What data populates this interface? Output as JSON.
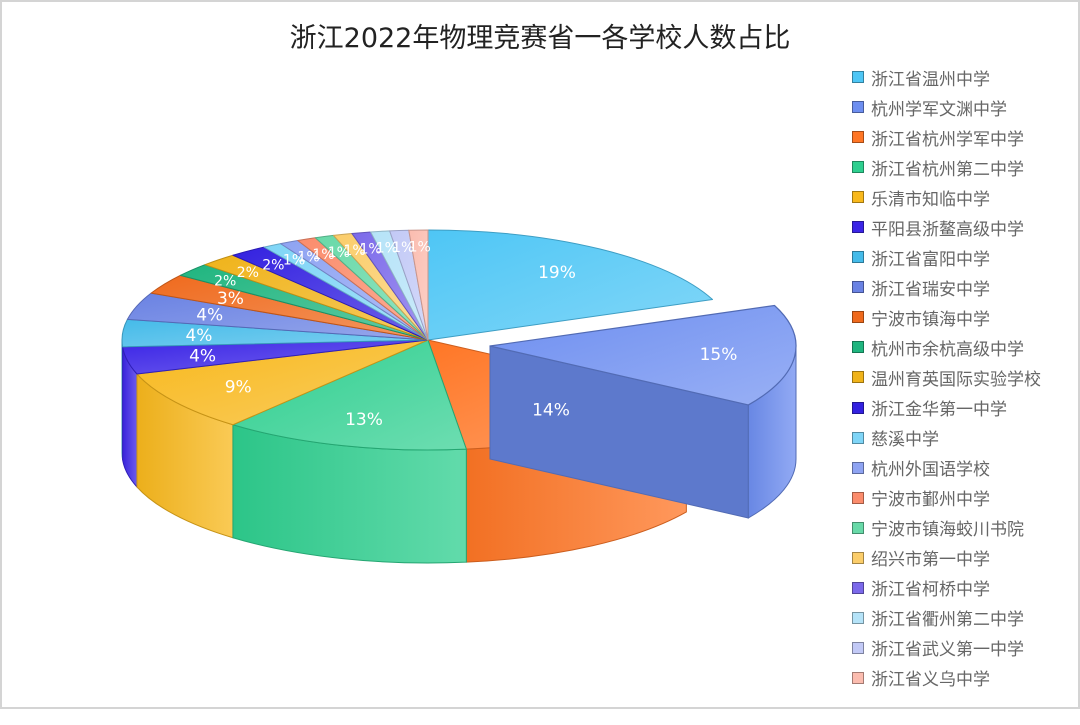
{
  "chart_data": {
    "type": "pie",
    "variant": "3d-exploded",
    "title": "浙江2022年物理竞赛省一各学校人数占比",
    "legend_position": "right",
    "data_label_format": "percent",
    "slices": [
      {
        "name": "浙江省温州中学",
        "value": 19,
        "label": "19%",
        "color": "#4ec6f5"
      },
      {
        "name": "杭州学军文渊中学",
        "value": 15,
        "label": "15%",
        "color": "#6d8ef0",
        "exploded": true
      },
      {
        "name": "浙江省杭州学军中学",
        "value": 14,
        "label": "14%",
        "color": "#ff7625"
      },
      {
        "name": "浙江省杭州第二中学",
        "value": 13,
        "label": "13%",
        "color": "#2ecf8f"
      },
      {
        "name": "乐清市知临中学",
        "value": 9,
        "label": "9%",
        "color": "#f8b81c"
      },
      {
        "name": "平阳县浙鳌高级中学",
        "value": 4,
        "label": "4%",
        "color": "#3b25e6"
      },
      {
        "name": "浙江省富阳中学",
        "value": 4,
        "label": "4%",
        "color": "#45bbe9"
      },
      {
        "name": "浙江省瑞安中学",
        "value": 4,
        "label": "4%",
        "color": "#6a82e3"
      },
      {
        "name": "宁波市镇海中学",
        "value": 3,
        "label": "3%",
        "color": "#ef6a1d"
      },
      {
        "name": "杭州市余杭高级中学",
        "value": 2,
        "label": "2%",
        "color": "#1fb57f"
      },
      {
        "name": "温州育英国际实验学校",
        "value": 2,
        "label": "2%",
        "color": "#f0b31a"
      },
      {
        "name": "浙江金华第一中学",
        "value": 2,
        "label": "2%",
        "color": "#3321e0"
      },
      {
        "name": "慈溪中学",
        "value": 1,
        "label": "1%",
        "color": "#7fd5f7"
      },
      {
        "name": "杭州外国语学校",
        "value": 1,
        "label": "1%",
        "color": "#8ea3f2"
      },
      {
        "name": "宁波市鄞州中学",
        "value": 1,
        "label": "1%",
        "color": "#fb8c6c"
      },
      {
        "name": "宁波市镇海蛟川书院",
        "value": 1,
        "label": "1%",
        "color": "#68d9a8"
      },
      {
        "name": "绍兴市第一中学",
        "value": 1,
        "label": "1%",
        "color": "#fbcd6a"
      },
      {
        "name": "浙江省柯桥中学",
        "value": 1,
        "label": "1%",
        "color": "#7b69ea"
      },
      {
        "name": "浙江省衢州第二中学",
        "value": 1,
        "label": "1%",
        "color": "#b5e3f8"
      },
      {
        "name": "浙江省武义第一中学",
        "value": 1,
        "label": "1%",
        "color": "#c2c9f6"
      },
      {
        "name": "浙江省义乌中学",
        "value": 1,
        "label": "1%",
        "color": "#fbbcaf"
      }
    ]
  }
}
